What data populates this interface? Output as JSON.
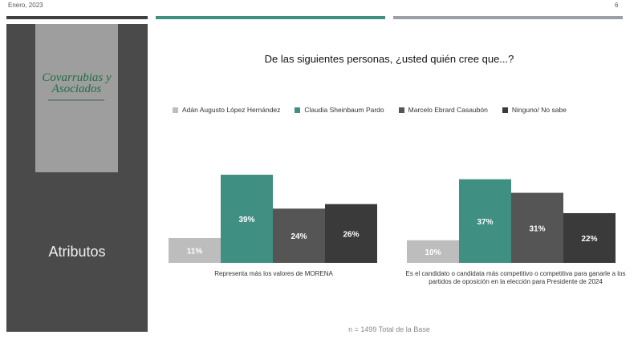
{
  "header": {
    "date": "Enero, 2023",
    "page_number": "6"
  },
  "sidebar": {
    "logo_line1": "Covarrubias y",
    "logo_line2": "Asociados",
    "title": "Atributos"
  },
  "question": "De las siguientes personas, ¿usted quién cree que...?",
  "footnote": "n = 1499 Total de la Base",
  "colors": {
    "teal": "#3f8f83",
    "dark_gray": "#555555",
    "darkest": "#3a3a3a",
    "light_gray": "#bdbdbd"
  },
  "chart_data": {
    "type": "bar",
    "title": "",
    "legend_position": "top",
    "series_names": [
      "Adán Augusto López Hernández",
      "Claudia Sheinbaum Pardo",
      "Marcelo Ebrard Casaubón",
      "Ninguno/ No sabe"
    ],
    "series_colors": [
      "#bdbdbd",
      "#3f8f83",
      "#555555",
      "#3a3a3a"
    ],
    "groups": [
      {
        "category": "Representa más los valores de MORENA",
        "values": [
          11,
          39,
          24,
          26
        ],
        "labels": [
          "11%",
          "39%",
          "24%",
          "26%"
        ]
      },
      {
        "category": "Es el candidato o candidata más competitivo o competitiva para ganarle a los partidos de oposición en la elección para Presidente de 2024",
        "values": [
          10,
          37,
          31,
          22
        ],
        "labels": [
          "10%",
          "37%",
          "31%",
          "22%"
        ]
      }
    ],
    "unit": "%",
    "grid": false
  }
}
